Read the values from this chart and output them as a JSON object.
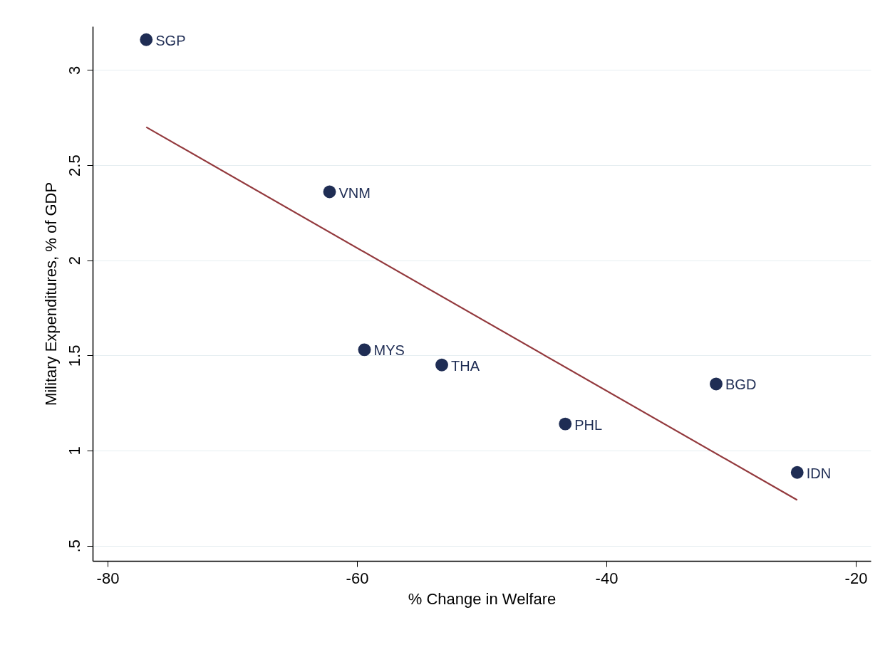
{
  "chart_data": {
    "type": "scatter",
    "xlabel": "% Change in Welfare",
    "ylabel": "Military Expenditures, % of GDP",
    "xlim": [
      -81.2,
      -18.8
    ],
    "xticks": [
      -80,
      -60,
      -40,
      -20
    ],
    "ylim": [
      0.42,
      3.23
    ],
    "yticks": [
      {
        "value": 0.5,
        "label": ".5"
      },
      1,
      1.5,
      2,
      2.5,
      3
    ],
    "grid": "y",
    "series": [
      {
        "marker": "circle",
        "color": "#1f2d54",
        "x": [
          -76.9,
          -62.2,
          -59.4,
          -53.2,
          -43.3,
          -31.2,
          -24.7
        ],
        "values": [
          3.16,
          2.36,
          1.53,
          1.45,
          1.14,
          1.35,
          0.885
        ]
      },
      {
        "type": "line",
        "color": "#93393d",
        "x": [
          -76.9,
          -24.7
        ],
        "values": [
          2.7,
          0.74
        ]
      }
    ],
    "annotations": [
      {
        "text": "SGP",
        "x": -76.9,
        "y": 3.16
      },
      {
        "text": "VNM",
        "x": -62.2,
        "y": 2.36
      },
      {
        "text": "MYS",
        "x": -59.4,
        "y": 1.53
      },
      {
        "text": "THA",
        "x": -53.2,
        "y": 1.45
      },
      {
        "text": "PHL",
        "x": -43.3,
        "y": 1.14
      },
      {
        "text": "BGD",
        "x": -31.2,
        "y": 1.35
      },
      {
        "text": "IDN",
        "x": -24.7,
        "y": 0.885
      }
    ]
  }
}
